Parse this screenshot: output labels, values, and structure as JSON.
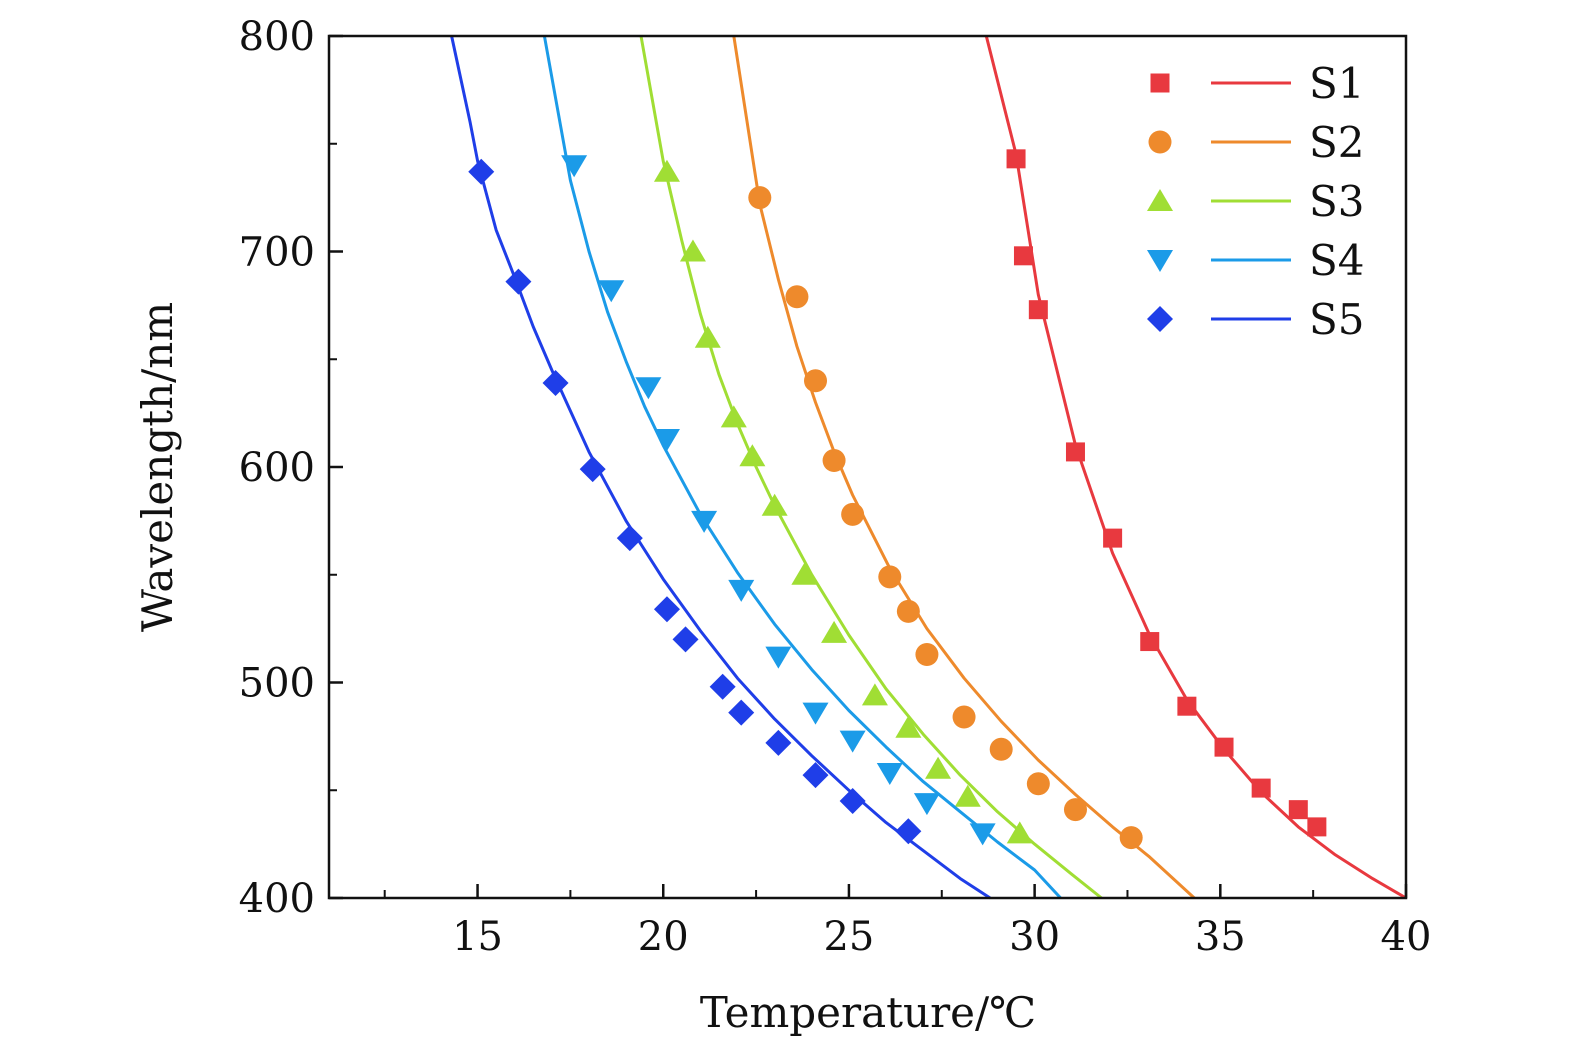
{
  "chart_data": {
    "type": "scatter",
    "title": "",
    "xlabel": "Temperature/℃",
    "ylabel": "Wavelength/nm",
    "xlim": [
      11,
      40
    ],
    "ylim": [
      400,
      800
    ],
    "xticks": [
      15,
      20,
      25,
      30,
      35,
      40
    ],
    "yticks": [
      400,
      500,
      600,
      700,
      800
    ],
    "x_tick_labels": [
      "15",
      "20",
      "25",
      "30",
      "35",
      "40"
    ],
    "y_tick_labels": [
      "400",
      "500",
      "600",
      "700",
      "800"
    ],
    "grid": false,
    "legend_position": "top-right",
    "series": [
      {
        "name": "S1",
        "color": "#e8393f",
        "marker": "square",
        "x": [
          29.5,
          29.7,
          30.1,
          31.1,
          32.1,
          33.1,
          34.1,
          35.1,
          36.1,
          37.1,
          37.6
        ],
        "y": [
          743,
          698,
          673,
          607,
          567,
          519,
          489,
          470,
          451,
          441,
          433
        ],
        "fit_x": [
          28.7,
          29.5,
          30.1,
          31.1,
          32.1,
          33.1,
          34.1,
          35.1,
          36.1,
          37.1,
          38.1,
          39.1,
          40.0
        ],
        "fit_y": [
          800,
          745,
          680,
          610,
          560,
          522,
          492,
          469,
          449,
          433,
          420,
          409,
          400
        ]
      },
      {
        "name": "S2",
        "color": "#ee8a2c",
        "marker": "circle",
        "x": [
          22.6,
          23.6,
          24.1,
          24.6,
          25.1,
          26.1,
          26.6,
          27.1,
          28.1,
          29.1,
          30.1,
          31.1,
          32.6
        ],
        "y": [
          725,
          679,
          640,
          603,
          578,
          549,
          533,
          513,
          484,
          469,
          453,
          441,
          428
        ],
        "fit_x": [
          21.9,
          22.6,
          23.1,
          23.6,
          24.1,
          24.6,
          25.1,
          26.1,
          27.1,
          28.1,
          29.1,
          30.1,
          31.1,
          32.1,
          33.1,
          34.3
        ],
        "fit_y": [
          800,
          722,
          687,
          656,
          630,
          607,
          587,
          553,
          525,
          502,
          482,
          464,
          448,
          433,
          419,
          400
        ]
      },
      {
        "name": "S3",
        "color": "#a0de34",
        "marker": "triangle-up",
        "x": [
          20.1,
          20.8,
          21.2,
          21.9,
          22.4,
          23.0,
          23.8,
          24.6,
          25.7,
          26.6,
          27.4,
          28.2,
          29.6
        ],
        "y": [
          737,
          700,
          660,
          623,
          605,
          582,
          550,
          523,
          494,
          479,
          460,
          447,
          430
        ],
        "fit_x": [
          19.4,
          20.0,
          20.5,
          21.0,
          21.5,
          22.0,
          22.5,
          23.0,
          24.0,
          25.0,
          26.0,
          27.0,
          28.0,
          29.0,
          30.0,
          31.0,
          31.8
        ],
        "fit_y": [
          800,
          742,
          705,
          671,
          643,
          620,
          600,
          582,
          550,
          522,
          497,
          476,
          457,
          440,
          425,
          411,
          400
        ]
      },
      {
        "name": "S4",
        "color": "#1b9be8",
        "marker": "triangle-down",
        "x": [
          17.6,
          18.6,
          19.6,
          20.1,
          21.1,
          22.1,
          23.1,
          24.1,
          25.1,
          26.1,
          27.1,
          28.6
        ],
        "y": [
          740,
          682,
          637,
          613,
          575,
          543,
          512,
          486,
          473,
          458,
          444,
          430
        ],
        "fit_x": [
          16.8,
          17.5,
          18.0,
          18.5,
          19.0,
          19.5,
          20.0,
          21.0,
          22.0,
          23.0,
          24.0,
          25.0,
          26.0,
          27.0,
          28.0,
          29.0,
          30.0,
          30.7
        ],
        "fit_y": [
          800,
          733,
          700,
          672,
          649,
          628,
          610,
          578,
          551,
          527,
          506,
          487,
          470,
          454,
          440,
          426,
          413,
          400
        ]
      },
      {
        "name": "S5",
        "color": "#1f3ee8",
        "marker": "diamond",
        "x": [
          15.1,
          16.1,
          17.1,
          18.1,
          19.1,
          20.1,
          20.6,
          21.6,
          22.1,
          23.1,
          24.1,
          25.1,
          26.6
        ],
        "y": [
          737,
          686,
          639,
          599,
          567,
          534,
          520,
          498,
          486,
          472,
          457,
          445,
          431
        ],
        "fit_x": [
          14.3,
          14.8,
          15.0,
          15.5,
          16.0,
          16.5,
          17.0,
          18.0,
          19.0,
          20.0,
          21.0,
          22.0,
          23.0,
          24.0,
          25.0,
          26.0,
          27.0,
          28.0,
          28.8
        ],
        "fit_y": [
          800,
          760,
          742,
          710,
          688,
          665,
          645,
          607,
          575,
          548,
          524,
          502,
          483,
          466,
          450,
          435,
          422,
          409,
          400
        ]
      }
    ]
  }
}
